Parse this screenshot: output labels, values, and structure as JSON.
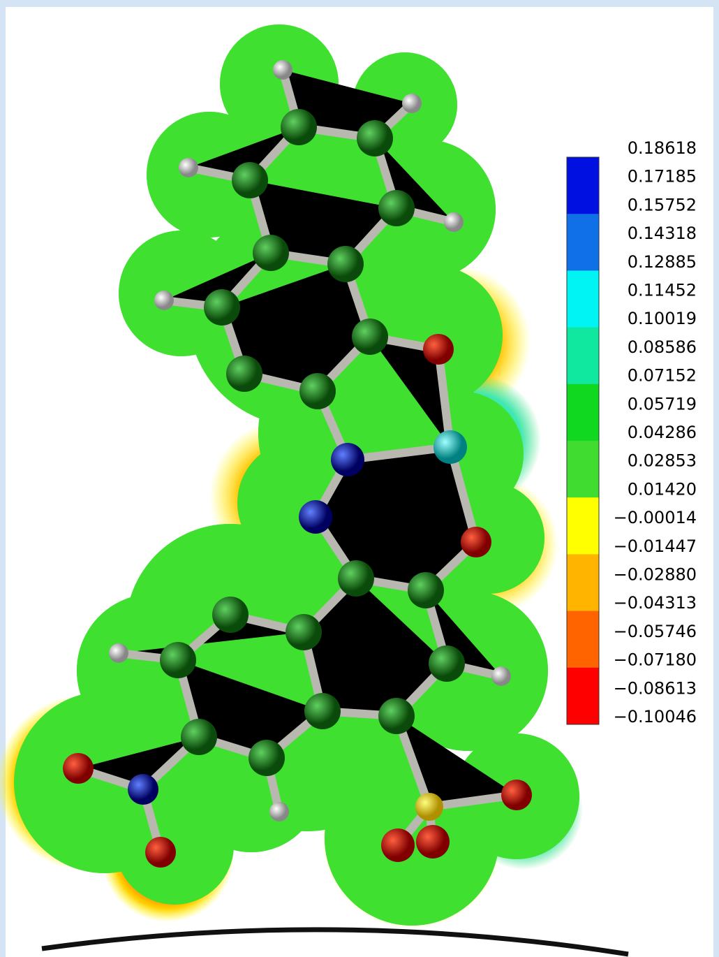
{
  "color_scale": {
    "labels": [
      "0.18618",
      "0.17185",
      "0.15752",
      "0.14318",
      "0.12885",
      "0.11452",
      "0.10019",
      "0.08586",
      "0.07152",
      "0.05719",
      "0.04286",
      "0.02853",
      "0.01420",
      "−0.00014",
      "−0.01447",
      "−0.02880",
      "−0.04313",
      "−0.05746",
      "−0.07180",
      "−0.08613",
      "−0.10046"
    ],
    "colors": [
      "#0010e0",
      "#1070e8",
      "#00f4f4",
      "#10e8a0",
      "#10d820",
      "#40dc30",
      "#ffff00",
      "#ffb400",
      "#ff6400",
      "#ff0000"
    ]
  }
}
